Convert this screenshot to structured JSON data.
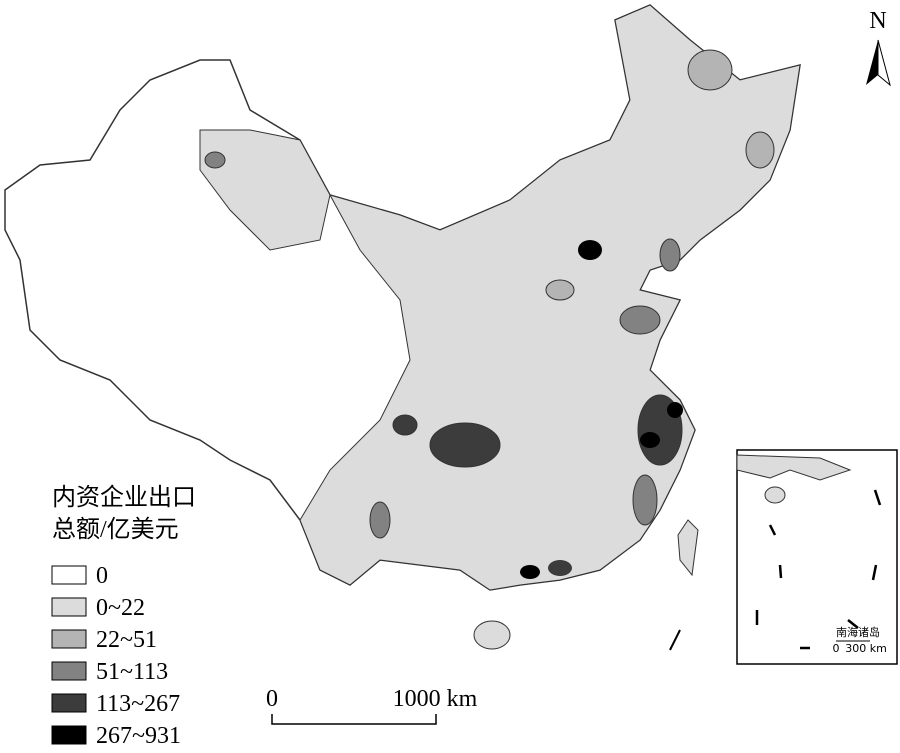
{
  "legend": {
    "title": [
      "内资企业出口",
      "总额/亿美元"
    ],
    "items": [
      {
        "label": "0",
        "color": "#ffffff"
      },
      {
        "label": "0~22",
        "color": "#dcdcdc"
      },
      {
        "label": "22~51",
        "color": "#b4b4b4"
      },
      {
        "label": "51~113",
        "color": "#828282"
      },
      {
        "label": "113~267",
        "color": "#3c3c3c"
      },
      {
        "label": "267~931",
        "color": "#000000"
      }
    ]
  },
  "scale_bar": {
    "start": "0",
    "end": "1000 km"
  },
  "north": "N",
  "inset": {
    "label": "南海诸岛",
    "scale_start": "0",
    "scale_end": "300 km"
  }
}
